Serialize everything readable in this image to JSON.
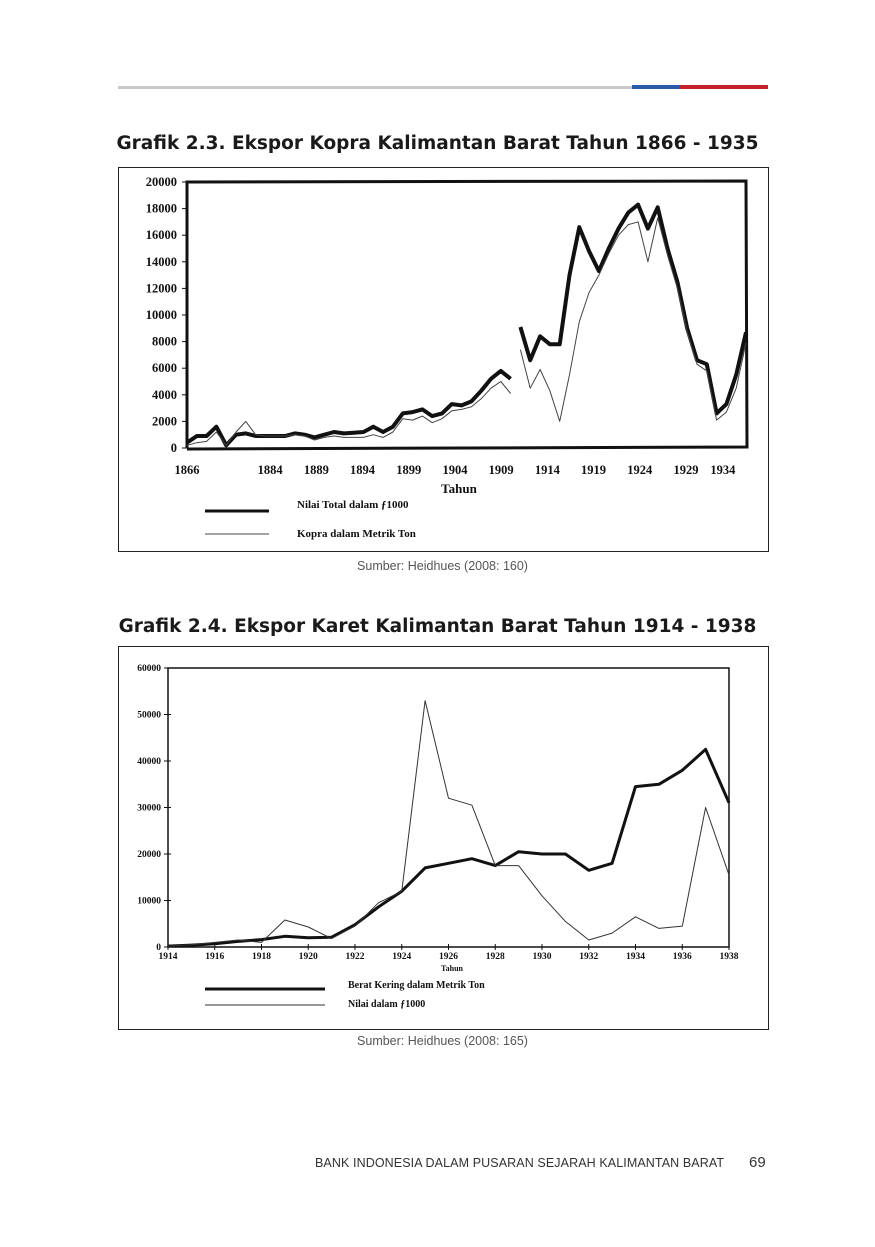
{
  "page": {
    "header_rule_colors": {
      "grey": "#c8c8c8",
      "blue": "#2b5aa8",
      "red": "#c8202c"
    },
    "footer_text": "BANK INDONESIA DALAM PUSARAN SEJARAH KALIMANTAN BARAT",
    "page_number": "69"
  },
  "figures": [
    {
      "title": "Grafik 2.3. Ekspor Kopra Kalimantan Barat Tahun 1866 - 1935",
      "source": "Sumber: Heidhues (2008: 160)"
    },
    {
      "title": "Grafik 2.4. Ekspor Karet Kalimantan Barat Tahun 1914 - 1938",
      "source": "Sumber: Heidhues (2008: 165)"
    }
  ],
  "chart_data": [
    {
      "type": "line",
      "xlabel": "Tahun",
      "ylabel": "",
      "ylim": [
        0,
        20000
      ],
      "y_ticks": [
        "0",
        "2000",
        "4000",
        "6000",
        "8000",
        "10000",
        "12000",
        "14000",
        "16000",
        "18000",
        "20000"
      ],
      "x_ticks": [
        "1866",
        "1884",
        "1889",
        "1894",
        "1899",
        "1904",
        "1909",
        "1914",
        "1919",
        "1924",
        "1929",
        "1934"
      ],
      "legend_position": "bottom-left",
      "series": [
        {
          "name": "Nilai Total dalam ƒ1000",
          "style": "thick",
          "segments": [
            [
              [
                0,
                400
              ],
              [
                1,
                900
              ],
              [
                2,
                900
              ],
              [
                3,
                1600
              ],
              [
                4,
                200
              ],
              [
                5,
                1000
              ],
              [
                6,
                1100
              ],
              [
                7,
                900
              ],
              [
                8,
                900
              ],
              [
                9,
                900
              ],
              [
                10,
                900
              ],
              [
                11,
                1100
              ],
              [
                12,
                1000
              ],
              [
                13,
                800
              ],
              [
                14,
                1000
              ],
              [
                15,
                1200
              ],
              [
                16,
                1100
              ],
              [
                17,
                1150
              ],
              [
                18,
                1200
              ],
              [
                19,
                1600
              ],
              [
                20,
                1200
              ],
              [
                21,
                1600
              ],
              [
                22,
                2600
              ],
              [
                23,
                2700
              ],
              [
                24,
                2900
              ],
              [
                25,
                2400
              ],
              [
                26,
                2600
              ],
              [
                27,
                3300
              ],
              [
                28,
                3200
              ],
              [
                29,
                3500
              ],
              [
                30,
                4300
              ],
              [
                31,
                5200
              ],
              [
                32,
                5800
              ],
              [
                33,
                5200
              ]
            ],
            [
              [
                34,
                9100
              ],
              [
                35,
                6600
              ],
              [
                36,
                8400
              ],
              [
                37,
                7800
              ],
              [
                38,
                7800
              ],
              [
                39,
                13000
              ],
              [
                40,
                16600
              ],
              [
                41,
                14800
              ],
              [
                42,
                13300
              ],
              [
                43,
                15000
              ],
              [
                44,
                16500
              ],
              [
                45,
                17700
              ],
              [
                46,
                18300
              ],
              [
                47,
                16500
              ],
              [
                48,
                18100
              ],
              [
                49,
                15000
              ],
              [
                50,
                12500
              ],
              [
                51,
                9000
              ],
              [
                52,
                6600
              ],
              [
                53,
                6300
              ],
              [
                54,
                2600
              ],
              [
                55,
                3300
              ],
              [
                56,
                5500
              ],
              [
                57,
                8700
              ]
            ]
          ]
        },
        {
          "name": "Kopra dalam Metrik Ton",
          "style": "thin",
          "segments": [
            [
              [
                0,
                200
              ],
              [
                1,
                400
              ],
              [
                2,
                500
              ],
              [
                3,
                1200
              ],
              [
                4,
                200
              ],
              [
                5,
                1200
              ],
              [
                6,
                2000
              ],
              [
                7,
                1000
              ],
              [
                8,
                900
              ],
              [
                9,
                900
              ],
              [
                10,
                900
              ],
              [
                11,
                1000
              ],
              [
                12,
                900
              ],
              [
                13,
                600
              ],
              [
                14,
                800
              ],
              [
                15,
                900
              ],
              [
                16,
                800
              ],
              [
                17,
                800
              ],
              [
                18,
                800
              ],
              [
                19,
                1000
              ],
              [
                20,
                800
              ],
              [
                21,
                1200
              ],
              [
                22,
                2200
              ],
              [
                23,
                2100
              ],
              [
                24,
                2400
              ],
              [
                25,
                1900
              ],
              [
                26,
                2200
              ],
              [
                27,
                2800
              ],
              [
                28,
                2900
              ],
              [
                29,
                3100
              ],
              [
                30,
                3700
              ],
              [
                31,
                4500
              ],
              [
                32,
                5000
              ],
              [
                33,
                4100
              ]
            ],
            [
              [
                34,
                7400
              ],
              [
                35,
                4500
              ],
              [
                36,
                5900
              ],
              [
                37,
                4300
              ],
              [
                38,
                2000
              ],
              [
                39,
                5500
              ],
              [
                40,
                9500
              ],
              [
                41,
                11700
              ],
              [
                42,
                13000
              ],
              [
                43,
                14600
              ],
              [
                44,
                16000
              ],
              [
                45,
                16800
              ],
              [
                46,
                17000
              ],
              [
                47,
                14000
              ],
              [
                48,
                17300
              ],
              [
                49,
                14500
              ],
              [
                50,
                12000
              ],
              [
                51,
                8700
              ],
              [
                52,
                6300
              ],
              [
                53,
                5800
              ],
              [
                54,
                2100
              ],
              [
                55,
                2700
              ],
              [
                56,
                4500
              ],
              [
                57,
                7900
              ]
            ]
          ]
        }
      ]
    },
    {
      "type": "line",
      "xlabel": "Tahun",
      "ylabel": "",
      "ylim": [
        0,
        60000
      ],
      "y_ticks": [
        "0",
        "10000",
        "20000",
        "30000",
        "40000",
        "50000",
        "60000"
      ],
      "x_ticks": [
        "1914",
        "1916",
        "1918",
        "1920",
        "1922",
        "1924",
        "1926",
        "1928",
        "1930",
        "1932",
        "1934",
        "1936",
        "1938"
      ],
      "legend_position": "bottom-left",
      "series": [
        {
          "name": "Berat Kering dalam Metrik Ton",
          "style": "thick",
          "x": [
            1914,
            1915,
            1916,
            1917,
            1918,
            1919,
            1920,
            1921,
            1922,
            1923,
            1924,
            1925,
            1926,
            1927,
            1928,
            1929,
            1930,
            1931,
            1932,
            1933,
            1934,
            1935,
            1936,
            1937,
            1938
          ],
          "y": [
            200,
            400,
            700,
            1200,
            1600,
            2300,
            2000,
            2100,
            4800,
            8600,
            12000,
            17000,
            18000,
            19000,
            17500,
            20500,
            20000,
            20000,
            16500,
            18000,
            34500,
            35000,
            38000,
            42500,
            31000
          ]
        },
        {
          "name": "Nilai dalam ƒ1000",
          "style": "thin",
          "x": [
            1914,
            1915,
            1916,
            1917,
            1918,
            1919,
            1920,
            1921,
            1922,
            1923,
            1924,
            1925,
            1926,
            1927,
            1928,
            1929,
            1930,
            1931,
            1932,
            1933,
            1934,
            1935,
            1936,
            1937,
            1938
          ],
          "y": [
            200,
            500,
            1000,
            1500,
            1000,
            5800,
            4300,
            1800,
            4500,
            9500,
            12000,
            53000,
            32000,
            30500,
            17500,
            17500,
            11000,
            5500,
            1500,
            3000,
            6500,
            4000,
            4500,
            30000,
            15500
          ]
        }
      ]
    }
  ]
}
